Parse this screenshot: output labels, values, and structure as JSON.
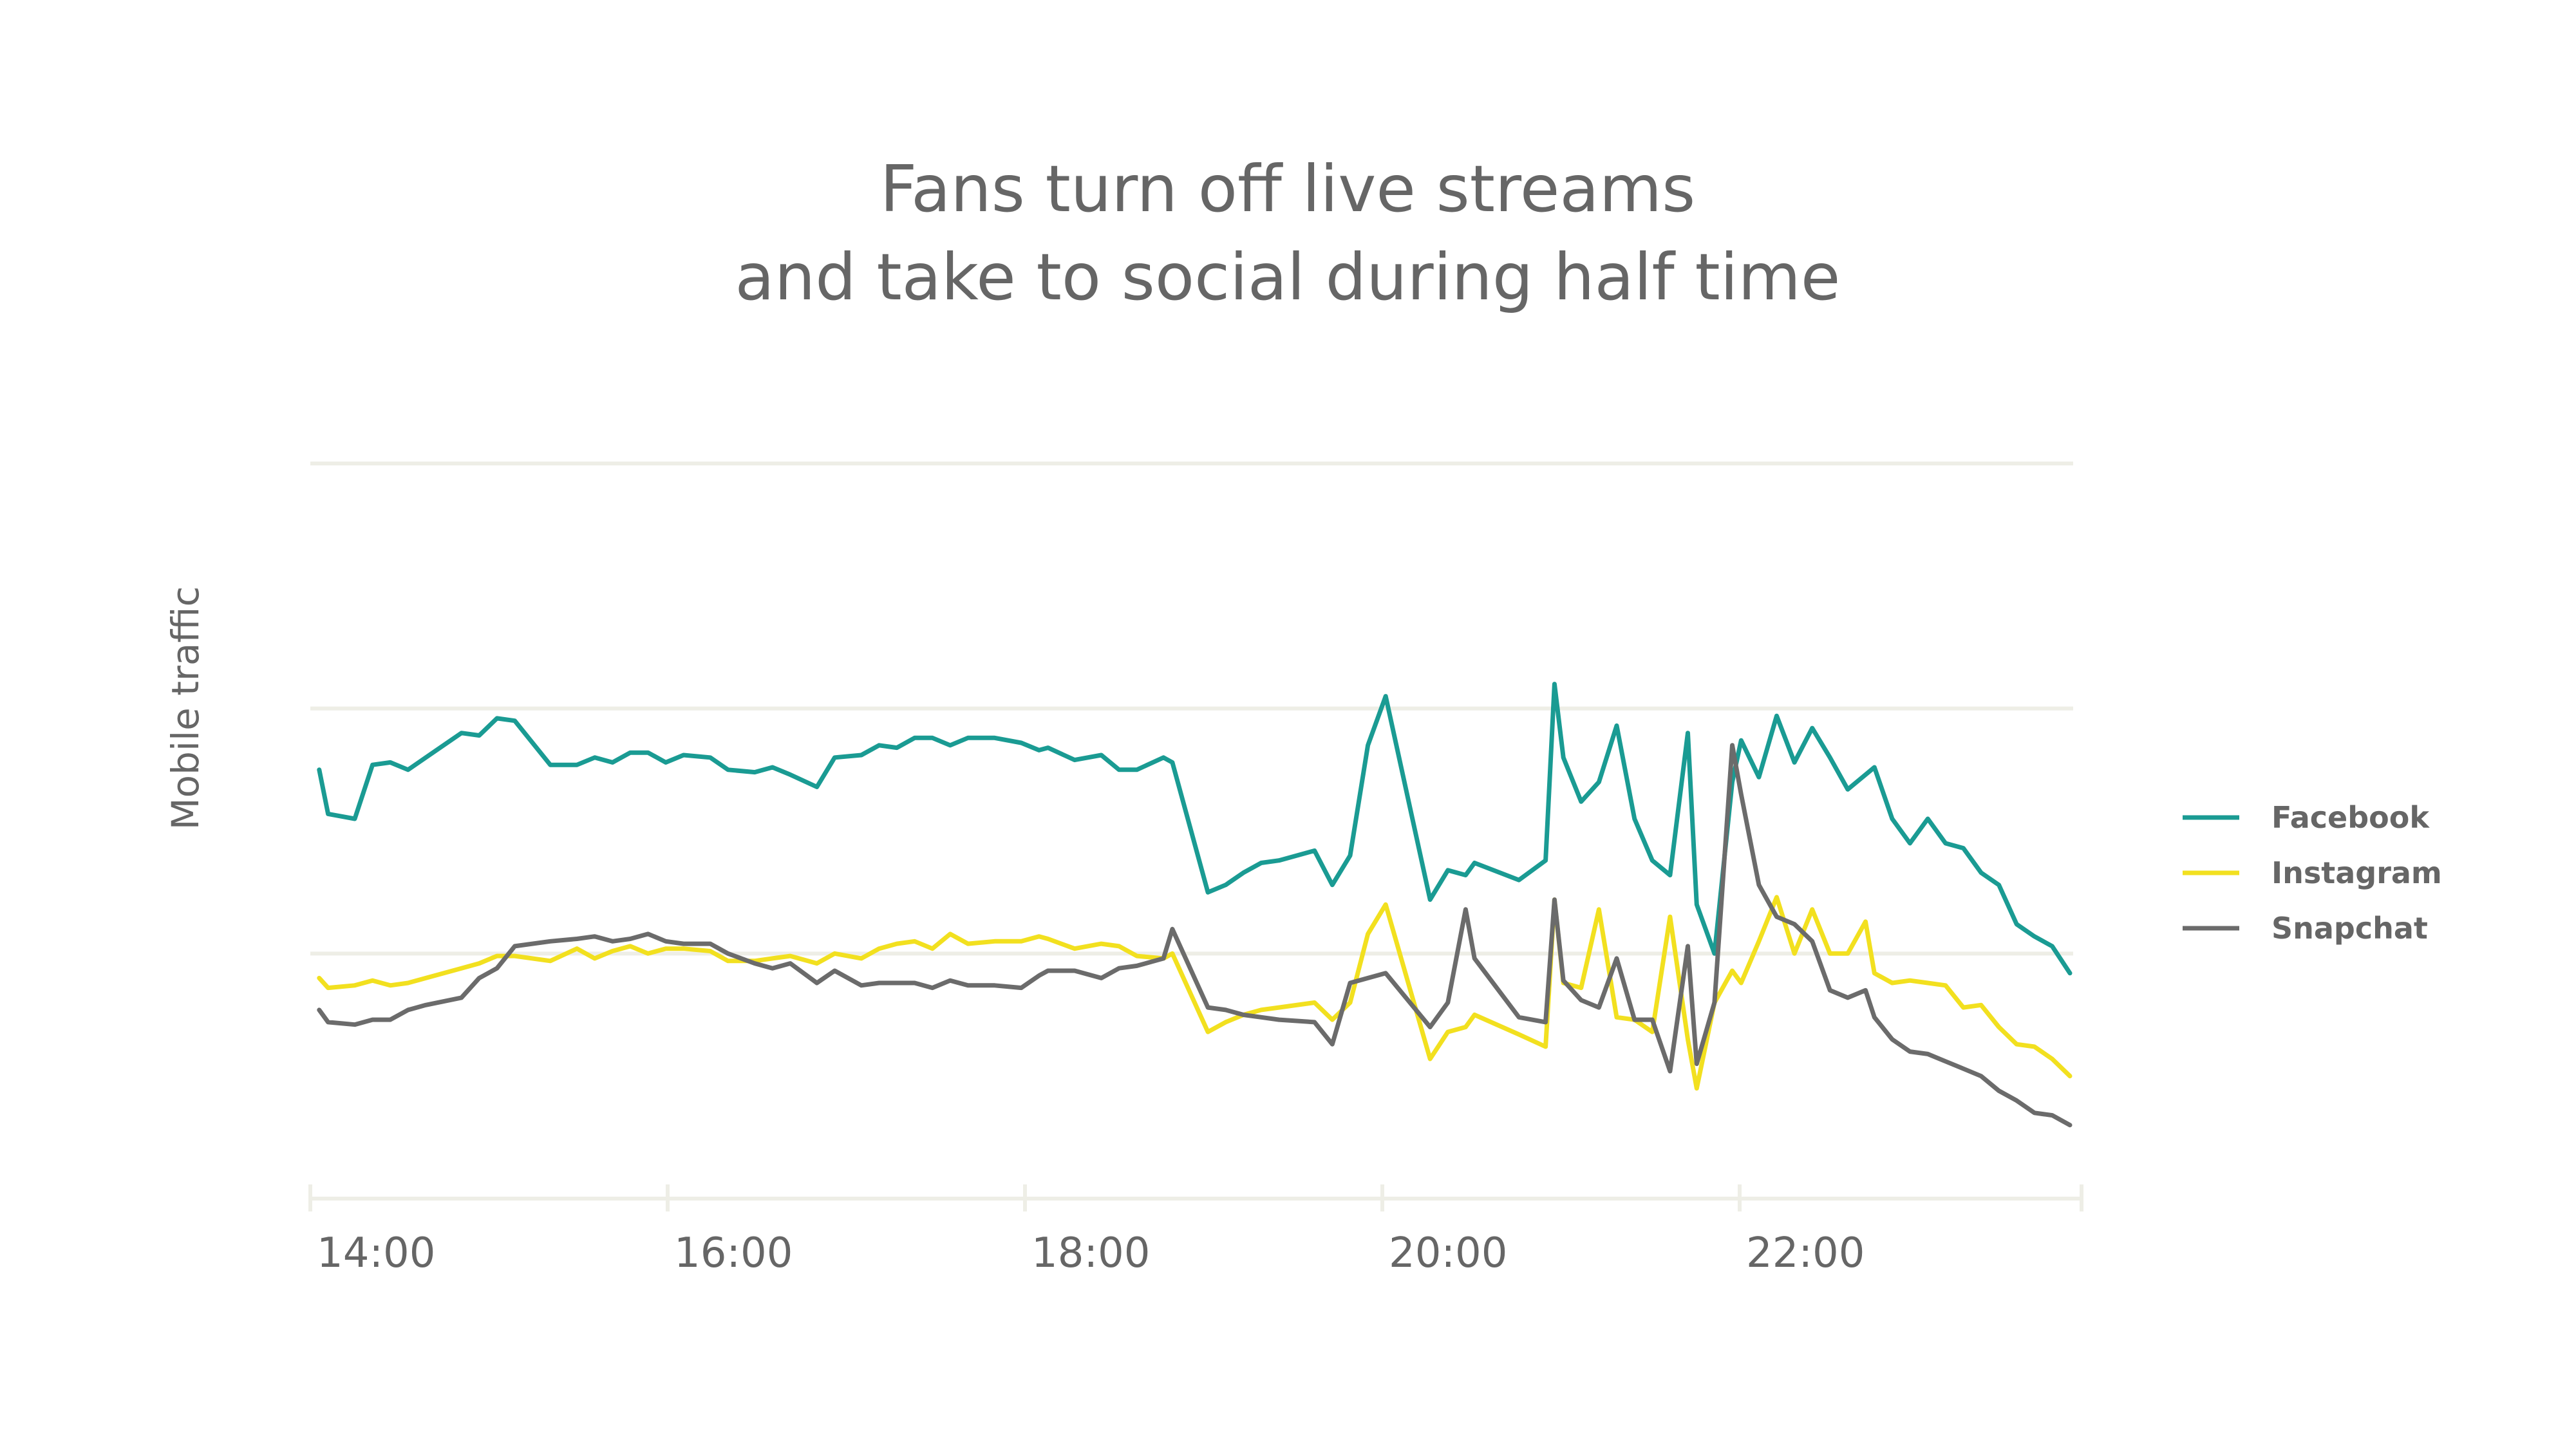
{
  "chart_data": {
    "type": "line",
    "title_lines": [
      "Fans turn off live streams",
      "and take to social during half time"
    ],
    "xlabel": "",
    "ylabel": "Mobile traffic",
    "x_ticks": [
      "14:00",
      "16:00",
      "18:00",
      "20:00",
      "22:00"
    ],
    "xlim": [
      14.0,
      23.9
    ],
    "ylim": [
      0,
      3
    ],
    "y_gridlines": 3,
    "legend_position": "right",
    "series": [
      {
        "name": "Facebook",
        "color": "#1a9b93",
        "x": [
          14.05,
          14.1,
          14.25,
          14.35,
          14.45,
          14.55,
          14.65,
          14.85,
          14.95,
          15.05,
          15.15,
          15.35,
          15.5,
          15.6,
          15.7,
          15.8,
          15.9,
          16.0,
          16.1,
          16.25,
          16.35,
          16.5,
          16.6,
          16.7,
          16.85,
          16.95,
          17.1,
          17.2,
          17.3,
          17.4,
          17.5,
          17.6,
          17.7,
          17.85,
          18.0,
          18.1,
          18.15,
          18.3,
          18.45,
          18.55,
          18.65,
          18.8,
          18.85,
          19.05,
          19.15,
          19.25,
          19.35,
          19.45,
          19.65,
          19.75,
          19.85,
          19.95,
          20.05,
          20.3,
          20.4,
          20.5,
          20.55,
          20.8,
          20.95,
          21.0,
          21.05,
          21.15,
          21.25,
          21.35,
          21.45,
          21.55,
          21.65,
          21.75,
          21.8,
          21.9,
          22.0,
          22.05,
          22.15,
          22.25,
          22.35,
          22.45,
          22.55,
          22.65,
          22.75,
          22.8,
          22.9,
          23.0,
          23.1,
          23.2,
          23.3,
          23.4,
          23.5,
          23.6,
          23.7,
          23.8,
          23.9
        ],
        "values": [
          1.75,
          1.57,
          1.55,
          1.77,
          1.78,
          1.75,
          1.8,
          1.9,
          1.89,
          1.96,
          1.95,
          1.77,
          1.77,
          1.8,
          1.78,
          1.82,
          1.82,
          1.78,
          1.81,
          1.8,
          1.75,
          1.74,
          1.76,
          1.73,
          1.68,
          1.8,
          1.81,
          1.85,
          1.84,
          1.88,
          1.88,
          1.85,
          1.88,
          1.88,
          1.86,
          1.83,
          1.84,
          1.79,
          1.81,
          1.75,
          1.75,
          1.8,
          1.78,
          1.25,
          1.28,
          1.33,
          1.37,
          1.38,
          1.42,
          1.28,
          1.4,
          1.85,
          2.05,
          1.22,
          1.34,
          1.32,
          1.37,
          1.3,
          1.38,
          2.1,
          1.8,
          1.62,
          1.7,
          1.93,
          1.55,
          1.38,
          1.32,
          1.9,
          1.2,
          1.0,
          1.7,
          1.87,
          1.72,
          1.97,
          1.78,
          1.92,
          1.8,
          1.67,
          1.73,
          1.76,
          1.55,
          1.45,
          1.55,
          1.45,
          1.43,
          1.33,
          1.28,
          1.12,
          1.07,
          1.03,
          0.92
        ]
      },
      {
        "name": "Instagram",
        "color": "#f2e01f",
        "x": [
          14.05,
          14.1,
          14.25,
          14.35,
          14.45,
          14.55,
          14.65,
          14.85,
          14.95,
          15.05,
          15.15,
          15.35,
          15.5,
          15.6,
          15.7,
          15.8,
          15.9,
          16.0,
          16.1,
          16.25,
          16.35,
          16.5,
          16.6,
          16.7,
          16.85,
          16.95,
          17.1,
          17.2,
          17.3,
          17.4,
          17.5,
          17.6,
          17.7,
          17.85,
          18.0,
          18.1,
          18.15,
          18.3,
          18.45,
          18.55,
          18.65,
          18.8,
          18.85,
          19.05,
          19.15,
          19.25,
          19.35,
          19.45,
          19.65,
          19.75,
          19.85,
          19.95,
          20.05,
          20.3,
          20.4,
          20.5,
          20.55,
          20.8,
          20.95,
          21.0,
          21.05,
          21.15,
          21.25,
          21.35,
          21.45,
          21.55,
          21.65,
          21.75,
          21.8,
          21.9,
          22.0,
          22.05,
          22.15,
          22.25,
          22.35,
          22.45,
          22.55,
          22.65,
          22.75,
          22.8,
          22.9,
          23.0,
          23.1,
          23.2,
          23.3,
          23.4,
          23.5,
          23.6,
          23.7,
          23.8,
          23.9
        ],
        "values": [
          0.9,
          0.86,
          0.87,
          0.89,
          0.87,
          0.88,
          0.9,
          0.94,
          0.96,
          0.99,
          0.99,
          0.97,
          1.02,
          0.98,
          1.01,
          1.03,
          1.0,
          1.02,
          1.02,
          1.01,
          0.97,
          0.97,
          0.98,
          0.99,
          0.96,
          1.0,
          0.98,
          1.02,
          1.04,
          1.05,
          1.02,
          1.08,
          1.04,
          1.05,
          1.05,
          1.07,
          1.06,
          1.02,
          1.04,
          1.03,
          0.99,
          0.98,
          1.0,
          0.68,
          0.72,
          0.75,
          0.77,
          0.78,
          0.8,
          0.73,
          0.8,
          1.08,
          1.2,
          0.57,
          0.68,
          0.7,
          0.75,
          0.67,
          0.62,
          1.22,
          0.88,
          0.86,
          1.18,
          0.74,
          0.73,
          0.68,
          1.15,
          0.65,
          0.45,
          0.8,
          0.93,
          0.88,
          1.05,
          1.23,
          1.0,
          1.18,
          1.0,
          1.0,
          1.13,
          0.92,
          0.88,
          0.89,
          0.88,
          0.87,
          0.78,
          0.79,
          0.7,
          0.63,
          0.62,
          0.57,
          0.5
        ]
      },
      {
        "name": "Snapchat",
        "color": "#6b6b6b",
        "x": [
          14.05,
          14.1,
          14.25,
          14.35,
          14.45,
          14.55,
          14.65,
          14.85,
          14.95,
          15.05,
          15.15,
          15.35,
          15.5,
          15.6,
          15.7,
          15.8,
          15.9,
          16.0,
          16.1,
          16.25,
          16.35,
          16.5,
          16.6,
          16.7,
          16.85,
          16.95,
          17.1,
          17.2,
          17.3,
          17.4,
          17.5,
          17.6,
          17.7,
          17.85,
          18.0,
          18.1,
          18.15,
          18.3,
          18.45,
          18.55,
          18.65,
          18.8,
          18.85,
          19.05,
          19.15,
          19.25,
          19.35,
          19.45,
          19.65,
          19.75,
          19.85,
          19.95,
          20.05,
          20.3,
          20.4,
          20.5,
          20.55,
          20.8,
          20.95,
          21.0,
          21.05,
          21.15,
          21.25,
          21.35,
          21.45,
          21.55,
          21.65,
          21.75,
          21.8,
          21.9,
          22.0,
          22.05,
          22.15,
          22.25,
          22.35,
          22.45,
          22.55,
          22.65,
          22.75,
          22.8,
          22.9,
          23.0,
          23.1,
          23.2,
          23.3,
          23.4,
          23.5,
          23.6,
          23.7,
          23.8,
          23.9
        ],
        "values": [
          0.77,
          0.72,
          0.71,
          0.73,
          0.73,
          0.77,
          0.79,
          0.82,
          0.9,
          0.94,
          1.03,
          1.05,
          1.06,
          1.07,
          1.05,
          1.06,
          1.08,
          1.05,
          1.04,
          1.04,
          1.0,
          0.96,
          0.94,
          0.96,
          0.88,
          0.93,
          0.87,
          0.88,
          0.88,
          0.88,
          0.86,
          0.89,
          0.87,
          0.87,
          0.86,
          0.91,
          0.93,
          0.93,
          0.9,
          0.94,
          0.95,
          0.98,
          1.1,
          0.78,
          0.77,
          0.75,
          0.74,
          0.73,
          0.72,
          0.63,
          0.88,
          0.9,
          0.92,
          0.7,
          0.8,
          1.18,
          0.98,
          0.74,
          0.72,
          1.22,
          0.89,
          0.81,
          0.78,
          0.98,
          0.73,
          0.73,
          0.52,
          1.03,
          0.55,
          0.8,
          1.85,
          1.65,
          1.28,
          1.15,
          1.12,
          1.05,
          0.85,
          0.82,
          0.85,
          0.74,
          0.65,
          0.6,
          0.59,
          0.56,
          0.53,
          0.5,
          0.44,
          0.4,
          0.35,
          0.34,
          0.3
        ]
      }
    ]
  }
}
